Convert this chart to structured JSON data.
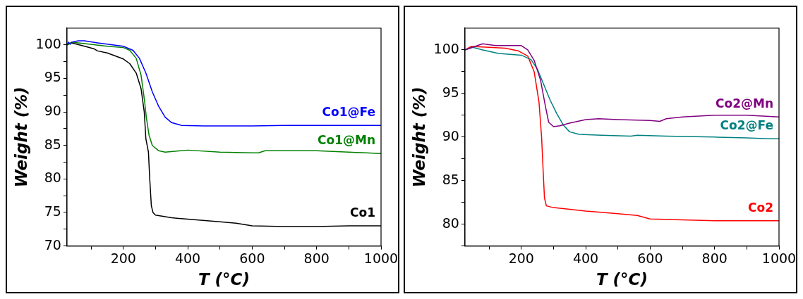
{
  "chart_data": [
    {
      "type": "line",
      "xlabel": "T (°C)",
      "ylabel": "Weight (%)",
      "xlim": [
        25,
        1000
      ],
      "ylim": [
        70,
        102.5
      ],
      "xticks": [
        {
          "value": 100,
          "label": null
        },
        200,
        {
          "value": 300,
          "label": null
        },
        400,
        {
          "value": 500,
          "label": null
        },
        600,
        {
          "value": 700,
          "label": null
        },
        800,
        {
          "value": 900,
          "label": null
        },
        1000
      ],
      "yticks": [
        70,
        {
          "value": 72.5,
          "label": null
        },
        75,
        {
          "value": 77.5,
          "label": null
        },
        80,
        {
          "value": 82.5,
          "label": null
        },
        85,
        {
          "value": 87.5,
          "label": null
        },
        90,
        {
          "value": 92.5,
          "label": null
        },
        95,
        {
          "value": 97.5,
          "label": null
        },
        100
      ],
      "grid": false,
      "legend": false,
      "series": [
        {
          "name": "Co1@Fe",
          "color": "#0000ff",
          "x": [
            25,
            30,
            35,
            40,
            60,
            80,
            120,
            150,
            200,
            230,
            250,
            270,
            290,
            310,
            330,
            350,
            380,
            450,
            520,
            600,
            700,
            800,
            900,
            1000
          ],
          "values": [
            100,
            100.4,
            100.1,
            100.4,
            100.6,
            100.6,
            100.3,
            100.1,
            99.8,
            99.2,
            98,
            95.8,
            93,
            90.8,
            89.2,
            88.4,
            88,
            87.9,
            87.9,
            87.9,
            88,
            88,
            88,
            88
          ]
        },
        {
          "name": "Co1@Mn",
          "color": "#008000",
          "x": [
            25,
            40,
            80,
            150,
            200,
            220,
            240,
            255,
            265,
            272,
            280,
            290,
            310,
            330,
            400,
            500,
            600,
            620,
            640,
            700,
            800,
            900,
            1000
          ],
          "values": [
            100,
            100.4,
            100.2,
            99.8,
            99.6,
            99.2,
            98,
            95.5,
            92,
            89,
            86.5,
            85,
            84.2,
            84,
            84.3,
            84,
            83.9,
            83.9,
            84.2,
            84.2,
            84.2,
            84,
            83.8
          ]
        },
        {
          "name": "Co1",
          "color": "#000000",
          "x": [
            25,
            40,
            80,
            110,
            120,
            150,
            200,
            220,
            240,
            255,
            265,
            270,
            278,
            282,
            287,
            292,
            300,
            350,
            400,
            500,
            550,
            600,
            700,
            800,
            900,
            1000
          ],
          "values": [
            100,
            100.3,
            99.8,
            99.4,
            99.1,
            98.8,
            97.9,
            97.2,
            95.8,
            93.5,
            90,
            86,
            84,
            80,
            76,
            75,
            74.6,
            74.2,
            74,
            73.6,
            73.4,
            73,
            72.9,
            72.9,
            73,
            73
          ]
        }
      ]
    },
    {
      "type": "line",
      "xlabel": "T (°C)",
      "ylabel": "Weight (%)",
      "xlim": [
        25,
        1000
      ],
      "ylim": [
        77.5,
        102.5
      ],
      "xticks": [
        {
          "value": 100,
          "label": null
        },
        200,
        {
          "value": 300,
          "label": null
        },
        400,
        {
          "value": 500,
          "label": null
        },
        600,
        {
          "value": 700,
          "label": null
        },
        800,
        {
          "value": 900,
          "label": null
        },
        1000
      ],
      "yticks": [
        {
          "value": 77.5,
          "label": null
        },
        80,
        {
          "value": 82.5,
          "label": null
        },
        85,
        {
          "value": 87.5,
          "label": null
        },
        90,
        {
          "value": 92.5,
          "label": null
        },
        95,
        {
          "value": 97.5,
          "label": null
        },
        100
      ],
      "grid": false,
      "legend": false,
      "series": [
        {
          "name": "Co2@Mn",
          "color": "#800080",
          "x": [
            25,
            40,
            80,
            120,
            150,
            200,
            220,
            240,
            260,
            275,
            285,
            300,
            320,
            350,
            400,
            440,
            500,
            600,
            630,
            650,
            700,
            800,
            900,
            1000
          ],
          "values": [
            100,
            100.2,
            100.7,
            100.5,
            100.5,
            100.5,
            100,
            98.8,
            96.5,
            93.5,
            91.7,
            91.2,
            91.3,
            91.6,
            92,
            92.1,
            92,
            91.9,
            91.8,
            92.1,
            92.3,
            92.5,
            92.5,
            92.3
          ]
        },
        {
          "name": "Co2@Fe",
          "color": "#008080",
          "x": [
            25,
            50,
            80,
            130,
            200,
            230,
            250,
            270,
            290,
            310,
            330,
            350,
            380,
            450,
            540,
            560,
            650,
            800,
            900,
            970,
            1000
          ],
          "values": [
            100,
            100.3,
            100,
            99.6,
            99.4,
            98.9,
            97.8,
            96,
            94.2,
            92.7,
            91.4,
            90.6,
            90.3,
            90.2,
            90.1,
            90.2,
            90.1,
            90,
            89.9,
            89.8,
            89.8
          ]
        },
        {
          "name": "Co2",
          "color": "#ff0000",
          "x": [
            25,
            45,
            100,
            150,
            190,
            220,
            240,
            255,
            263,
            268,
            272,
            278,
            300,
            400,
            500,
            560,
            600,
            700,
            800,
            900,
            1000
          ],
          "values": [
            100,
            100.4,
            100.3,
            100.2,
            99.9,
            99.3,
            97.5,
            94,
            90,
            86,
            83,
            82.1,
            81.9,
            81.5,
            81.2,
            81,
            80.6,
            80.5,
            80.4,
            80.4,
            80.4
          ]
        }
      ]
    }
  ]
}
